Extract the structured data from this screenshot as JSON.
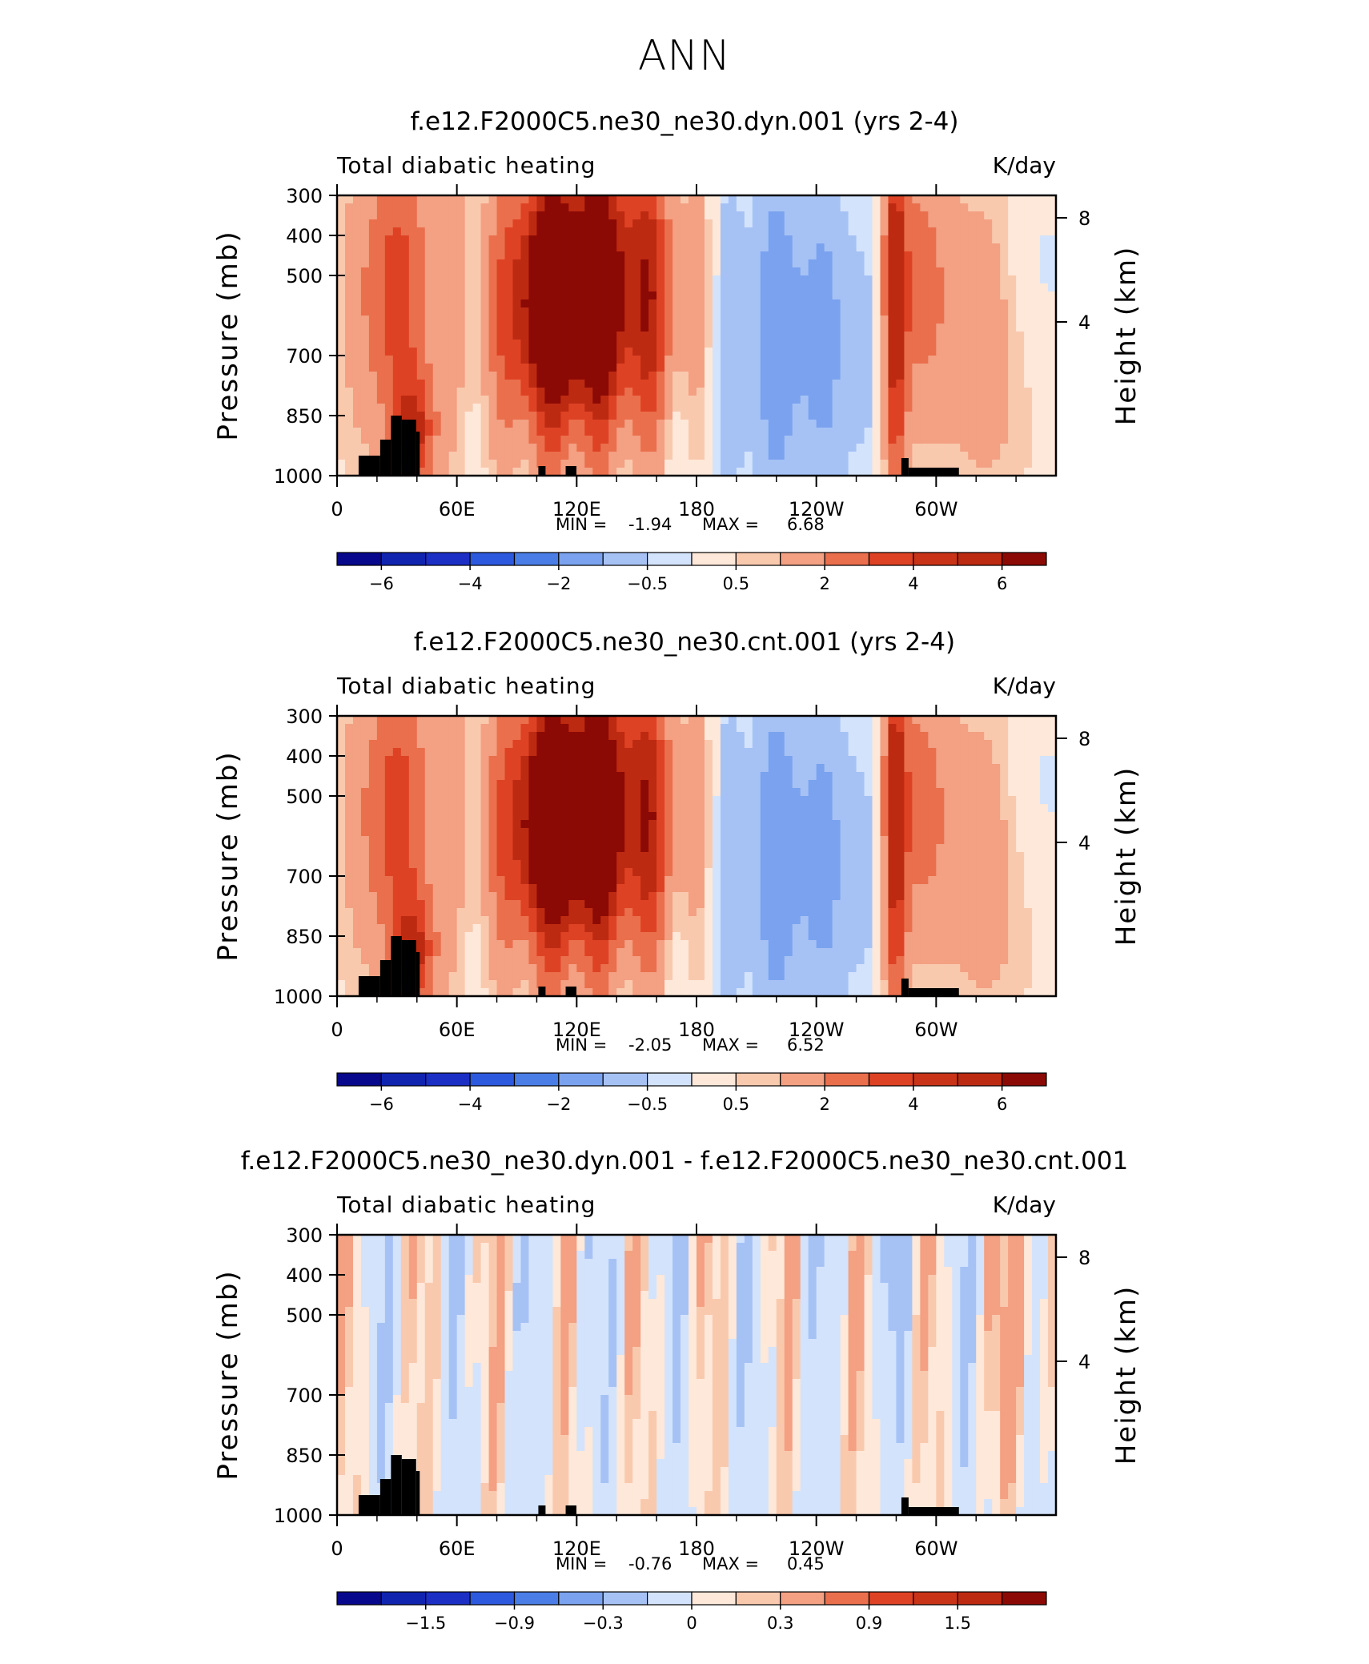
{
  "page_title": "ANN",
  "chart_data": [
    {
      "type": "heatmap",
      "title": "f.e12.F2000C5.ne30_ne30.dyn.001 (yrs 2-4)",
      "left_label": "Total diabatic heating",
      "right_label": "K/day",
      "ylabel": "Pressure (mb)",
      "ylabel_right": "Height (km)",
      "y_ticks": [
        "300",
        "400",
        "500",
        "700",
        "850",
        "1000"
      ],
      "y_ticks_right": [
        "8",
        "4"
      ],
      "x_ticks": [
        "0",
        "60E",
        "120E",
        "180",
        "120W",
        "60W"
      ],
      "min_label": "MIN =",
      "min_value": "-1.94",
      "max_label": "MAX =",
      "max_value": "6.68",
      "colorbar_labels": [
        "-6",
        "-4",
        "-2",
        "-0.5",
        "0.5",
        "2",
        "4",
        "6"
      ],
      "y_scale": "log pressure",
      "ylim": [
        1000,
        300
      ]
    },
    {
      "type": "heatmap",
      "title": "f.e12.F2000C5.ne30_ne30.cnt.001 (yrs 2-4)",
      "left_label": "Total diabatic heating",
      "right_label": "K/day",
      "ylabel": "Pressure (mb)",
      "ylabel_right": "Height (km)",
      "y_ticks": [
        "300",
        "400",
        "500",
        "700",
        "850",
        "1000"
      ],
      "y_ticks_right": [
        "8",
        "4"
      ],
      "x_ticks": [
        "0",
        "60E",
        "120E",
        "180",
        "120W",
        "60W"
      ],
      "min_label": "MIN =",
      "min_value": "-2.05",
      "max_label": "MAX =",
      "max_value": "6.52",
      "colorbar_labels": [
        "-6",
        "-4",
        "-2",
        "-0.5",
        "0.5",
        "2",
        "4",
        "6"
      ],
      "y_scale": "log pressure",
      "ylim": [
        1000,
        300
      ]
    },
    {
      "type": "heatmap",
      "title": "f.e12.F2000C5.ne30_ne30.dyn.001 - f.e12.F2000C5.ne30_ne30.cnt.001",
      "left_label": "Total diabatic heating",
      "right_label": "K/day",
      "ylabel": "Pressure (mb)",
      "ylabel_right": "Height (km)",
      "y_ticks": [
        "300",
        "400",
        "500",
        "700",
        "850",
        "1000"
      ],
      "y_ticks_right": [
        "8",
        "4"
      ],
      "x_ticks": [
        "0",
        "60E",
        "120E",
        "180",
        "120W",
        "60W"
      ],
      "min_label": "MIN =",
      "min_value": "-0.76",
      "max_label": "MAX =",
      "max_value": "0.45",
      "colorbar_labels": [
        "-1.5",
        "-0.9",
        "-0.3",
        "0",
        "0.3",
        "0.9",
        "1.5"
      ],
      "y_scale": "log pressure",
      "ylim": [
        1000,
        300
      ]
    }
  ],
  "colors": {
    "palette": [
      "#08088c",
      "#1b2fc4",
      "#2d59de",
      "#4a7ee6",
      "#7aa2ef",
      "#a6c2f5",
      "#d3e3fb",
      "#fde8d9",
      "#f9c9ae",
      "#f3a083",
      "#ea6f4d",
      "#de4224",
      "#bd2a12",
      "#8c0a05"
    ],
    "topography": "#000000"
  }
}
